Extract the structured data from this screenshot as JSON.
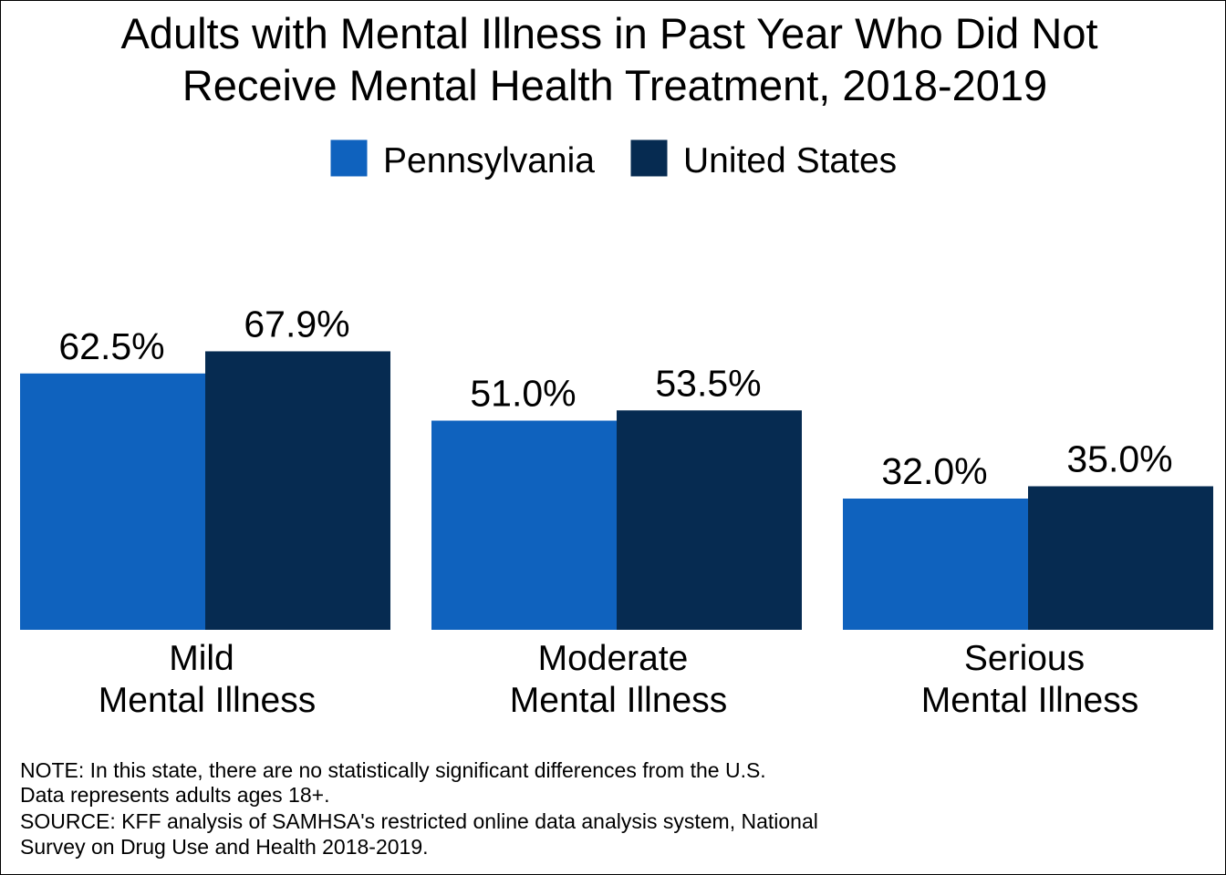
{
  "chart_data": {
    "type": "bar",
    "title": "Adults with Mental Illness in Past Year Who Did Not Receive Mental Health Treatment, 2018-2019",
    "title_lines": [
      "Adults with Mental Illness in Past Year Who Did Not",
      "Receive Mental Health Treatment, 2018-2019"
    ],
    "categories": [
      [
        "Mild",
        "Mental Illness"
      ],
      [
        "Moderate",
        "Mental Illness"
      ],
      [
        "Serious",
        "Mental Illness"
      ]
    ],
    "series": [
      {
        "name": "Pennsylvania",
        "color": "#0f62be",
        "values": [
          62.5,
          51.0,
          32.0
        ],
        "labels": [
          "62.5%",
          "51.0%",
          "32.0%"
        ]
      },
      {
        "name": "United States",
        "color": "#062b51",
        "values": [
          67.9,
          53.5,
          35.0
        ],
        "labels": [
          "67.9%",
          "53.5%",
          "35.0%"
        ]
      }
    ],
    "ylim": [
      0,
      100
    ],
    "xlabel": "",
    "ylabel": "",
    "grid": false,
    "legend_position": "top-center",
    "value_labels": true
  },
  "notes": [
    "NOTE: In this state, there are no statistically significant differences from the U.S.",
    "Data represents adults ages 18+.",
    "SOURCE: KFF analysis of SAMHSA's restricted online data analysis system, National",
    "Survey on Drug Use and Health 2018-2019."
  ]
}
